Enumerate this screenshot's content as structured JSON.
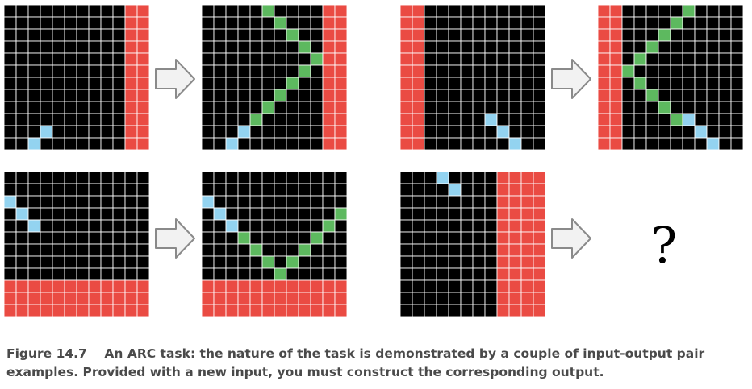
{
  "colors": {
    "background": "#000000",
    "red": "#ea4b43",
    "green": "#5db95f",
    "blue": "#93d3f0",
    "arrow_fill": "#f2f2f2",
    "arrow_stroke": "#8a8a8a"
  },
  "grids": [
    {
      "id": "example1-input",
      "rows": 12,
      "cols": 12,
      "cells": [
        {
          "r": 10,
          "c": 3,
          "v": "blue"
        },
        {
          "r": 11,
          "c": 2,
          "v": "blue"
        },
        {
          "rows": [
            0,
            11
          ],
          "cols": [
            10,
            11
          ],
          "v": "red"
        }
      ]
    },
    {
      "id": "example1-output",
      "rows": 12,
      "cols": 12,
      "cells": [
        {
          "rows": [
            0,
            11
          ],
          "cols": [
            10,
            11
          ],
          "v": "red"
        },
        {
          "r": 0,
          "c": 5,
          "v": "green"
        },
        {
          "r": 1,
          "c": 6,
          "v": "green"
        },
        {
          "r": 2,
          "c": 7,
          "v": "green"
        },
        {
          "r": 3,
          "c": 8,
          "v": "green"
        },
        {
          "r": 4,
          "c": 9,
          "v": "green"
        },
        {
          "r": 5,
          "c": 8,
          "v": "green"
        },
        {
          "r": 6,
          "c": 7,
          "v": "green"
        },
        {
          "r": 7,
          "c": 6,
          "v": "green"
        },
        {
          "r": 8,
          "c": 5,
          "v": "green"
        },
        {
          "r": 9,
          "c": 4,
          "v": "green"
        },
        {
          "r": 10,
          "c": 3,
          "v": "blue"
        },
        {
          "r": 11,
          "c": 2,
          "v": "blue"
        }
      ]
    },
    {
      "id": "example2-input",
      "rows": 12,
      "cols": 12,
      "cells": [
        {
          "rows": [
            0,
            11
          ],
          "cols": [
            0,
            1
          ],
          "v": "red"
        },
        {
          "r": 9,
          "c": 7,
          "v": "blue"
        },
        {
          "r": 10,
          "c": 8,
          "v": "blue"
        },
        {
          "r": 11,
          "c": 9,
          "v": "blue"
        }
      ]
    },
    {
      "id": "example2-output",
      "rows": 12,
      "cols": 12,
      "cells": [
        {
          "rows": [
            0,
            11
          ],
          "cols": [
            0,
            1
          ],
          "v": "red"
        },
        {
          "r": 0,
          "c": 7,
          "v": "green"
        },
        {
          "r": 1,
          "c": 6,
          "v": "green"
        },
        {
          "r": 2,
          "c": 5,
          "v": "green"
        },
        {
          "r": 3,
          "c": 4,
          "v": "green"
        },
        {
          "r": 4,
          "c": 3,
          "v": "green"
        },
        {
          "r": 5,
          "c": 2,
          "v": "green"
        },
        {
          "r": 6,
          "c": 3,
          "v": "green"
        },
        {
          "r": 7,
          "c": 4,
          "v": "green"
        },
        {
          "r": 8,
          "c": 5,
          "v": "green"
        },
        {
          "r": 9,
          "c": 6,
          "v": "green"
        },
        {
          "r": 9,
          "c": 7,
          "v": "blue"
        },
        {
          "r": 10,
          "c": 8,
          "v": "blue"
        },
        {
          "r": 11,
          "c": 9,
          "v": "blue"
        }
      ]
    },
    {
      "id": "example3-input",
      "rows": 12,
      "cols": 12,
      "cells": [
        {
          "r": 2,
          "c": 0,
          "v": "blue"
        },
        {
          "r": 3,
          "c": 1,
          "v": "blue"
        },
        {
          "r": 4,
          "c": 2,
          "v": "blue"
        },
        {
          "rows": [
            9,
            11
          ],
          "cols": [
            0,
            11
          ],
          "v": "red"
        }
      ]
    },
    {
      "id": "example3-output",
      "rows": 12,
      "cols": 12,
      "cells": [
        {
          "r": 2,
          "c": 0,
          "v": "blue"
        },
        {
          "r": 3,
          "c": 1,
          "v": "blue"
        },
        {
          "r": 4,
          "c": 2,
          "v": "blue"
        },
        {
          "r": 5,
          "c": 3,
          "v": "green"
        },
        {
          "r": 6,
          "c": 4,
          "v": "green"
        },
        {
          "r": 7,
          "c": 5,
          "v": "green"
        },
        {
          "r": 8,
          "c": 6,
          "v": "green"
        },
        {
          "r": 7,
          "c": 7,
          "v": "green"
        },
        {
          "r": 6,
          "c": 8,
          "v": "green"
        },
        {
          "r": 5,
          "c": 9,
          "v": "green"
        },
        {
          "r": 4,
          "c": 10,
          "v": "green"
        },
        {
          "r": 3,
          "c": 11,
          "v": "green"
        },
        {
          "rows": [
            9,
            11
          ],
          "cols": [
            0,
            11
          ],
          "v": "red"
        }
      ]
    },
    {
      "id": "test-input",
      "rows": 12,
      "cols": 12,
      "cells": [
        {
          "r": 0,
          "c": 3,
          "v": "blue"
        },
        {
          "r": 1,
          "c": 4,
          "v": "blue"
        },
        {
          "rows": [
            0,
            11
          ],
          "cols": [
            8,
            11
          ],
          "v": "red"
        }
      ]
    }
  ],
  "test_output": "?",
  "caption": {
    "label": "Figure 14.7",
    "line1": "An ARC task: the nature of the task is demonstrated by a couple of input-output pair",
    "line2": "examples. Provided with a new input, you must construct the corresponding output."
  }
}
